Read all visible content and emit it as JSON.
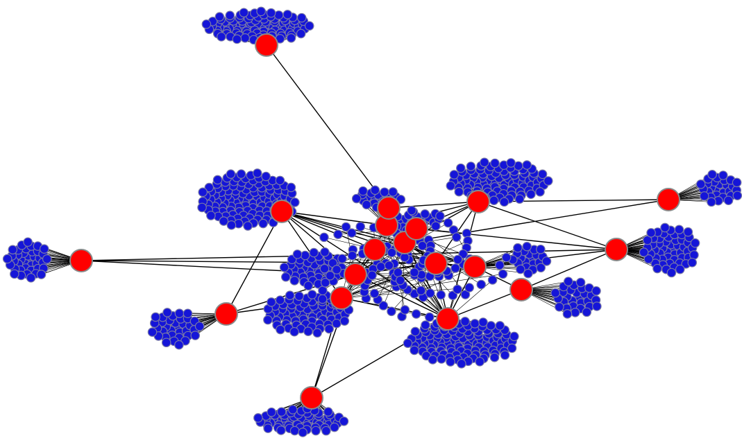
{
  "diagram": {
    "type": "hub-and-spoke network graph",
    "colors": {
      "hub": "#ff0000",
      "leaf": "#1515d8",
      "edge": "#000000",
      "background": "#ffffff"
    },
    "hub_count": 19,
    "hub_hub_links": 48
  }
}
